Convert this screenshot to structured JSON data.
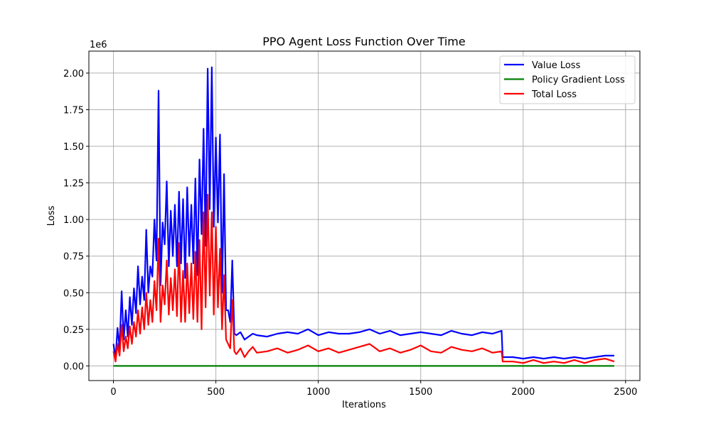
{
  "chart_data": {
    "type": "line",
    "title": "PPO Agent Loss Function Over Time",
    "xlabel": "Iterations",
    "ylabel": "Loss",
    "y_offset_text": "1e6",
    "xlim": [
      -120,
      2570
    ],
    "ylim": [
      -0.1,
      2.15
    ],
    "x_ticks": [
      0,
      500,
      1000,
      1500,
      2000,
      2500
    ],
    "y_ticks": [
      0.0,
      0.25,
      0.5,
      0.75,
      1.0,
      1.25,
      1.5,
      1.75,
      2.0
    ],
    "y_tick_labels": [
      "0.00",
      "0.25",
      "0.50",
      "0.75",
      "1.00",
      "1.25",
      "1.50",
      "1.75",
      "2.00"
    ],
    "grid": true,
    "legend_position": "top-right",
    "colors": {
      "value": "#0000ff",
      "policy": "#008000",
      "total": "#ff0000",
      "grid": "#b0b0b0"
    },
    "series": [
      {
        "name": "Value Loss",
        "color": "#0000ff",
        "x": [
          0,
          10,
          20,
          30,
          40,
          50,
          60,
          70,
          80,
          90,
          100,
          110,
          120,
          130,
          140,
          150,
          160,
          170,
          180,
          190,
          200,
          210,
          220,
          230,
          240,
          250,
          260,
          270,
          280,
          290,
          300,
          310,
          320,
          330,
          340,
          350,
          360,
          370,
          380,
          390,
          400,
          410,
          420,
          430,
          440,
          450,
          460,
          470,
          480,
          490,
          500,
          510,
          520,
          530,
          540,
          550,
          560,
          570,
          580,
          590,
          600,
          620,
          640,
          660,
          680,
          700,
          750,
          800,
          850,
          900,
          950,
          1000,
          1050,
          1100,
          1150,
          1200,
          1250,
          1300,
          1350,
          1400,
          1450,
          1500,
          1550,
          1600,
          1650,
          1700,
          1750,
          1800,
          1850,
          1895,
          1900,
          1950,
          2000,
          2050,
          2100,
          2150,
          2200,
          2250,
          2300,
          2350,
          2400,
          2445
        ],
        "values": [
          0.15,
          0.05,
          0.26,
          0.12,
          0.51,
          0.18,
          0.38,
          0.2,
          0.47,
          0.28,
          0.53,
          0.36,
          0.68,
          0.42,
          0.61,
          0.45,
          0.93,
          0.5,
          0.68,
          0.61,
          1.0,
          0.72,
          1.88,
          0.55,
          0.98,
          0.83,
          1.26,
          0.68,
          1.06,
          0.75,
          1.1,
          0.68,
          1.19,
          0.7,
          1.14,
          0.6,
          1.22,
          0.75,
          1.1,
          0.7,
          1.28,
          0.62,
          1.41,
          0.9,
          1.62,
          0.82,
          2.03,
          1.07,
          2.04,
          0.95,
          1.56,
          0.98,
          1.58,
          0.5,
          1.31,
          0.38,
          0.38,
          0.3,
          0.72,
          0.22,
          0.21,
          0.23,
          0.18,
          0.2,
          0.22,
          0.21,
          0.2,
          0.22,
          0.23,
          0.22,
          0.25,
          0.21,
          0.23,
          0.22,
          0.22,
          0.23,
          0.25,
          0.22,
          0.24,
          0.21,
          0.22,
          0.23,
          0.22,
          0.21,
          0.24,
          0.22,
          0.21,
          0.23,
          0.22,
          0.24,
          0.06,
          0.06,
          0.05,
          0.06,
          0.05,
          0.06,
          0.05,
          0.06,
          0.05,
          0.06,
          0.07,
          0.07
        ]
      },
      {
        "name": "Policy Gradient Loss",
        "color": "#008000",
        "x": [
          0,
          500,
          1000,
          1500,
          2000,
          2445
        ],
        "values": [
          0.0,
          0.0,
          0.0,
          0.0,
          0.0,
          0.0
        ]
      },
      {
        "name": "Total Loss",
        "color": "#ff0000",
        "x": [
          0,
          10,
          20,
          30,
          40,
          50,
          60,
          70,
          80,
          90,
          100,
          110,
          120,
          130,
          140,
          150,
          160,
          170,
          180,
          190,
          200,
          210,
          220,
          230,
          240,
          250,
          260,
          270,
          280,
          290,
          300,
          310,
          320,
          330,
          340,
          350,
          360,
          370,
          380,
          390,
          400,
          410,
          420,
          430,
          440,
          450,
          460,
          470,
          480,
          490,
          500,
          510,
          520,
          530,
          540,
          550,
          560,
          570,
          580,
          590,
          600,
          620,
          640,
          660,
          680,
          700,
          750,
          800,
          850,
          900,
          950,
          1000,
          1050,
          1100,
          1150,
          1200,
          1250,
          1300,
          1350,
          1400,
          1450,
          1500,
          1550,
          1600,
          1650,
          1700,
          1750,
          1800,
          1850,
          1895,
          1900,
          1950,
          2000,
          2050,
          2100,
          2150,
          2200,
          2250,
          2300,
          2350,
          2400,
          2445
        ],
        "values": [
          0.1,
          0.03,
          0.15,
          0.07,
          0.28,
          0.1,
          0.2,
          0.12,
          0.27,
          0.15,
          0.3,
          0.2,
          0.38,
          0.22,
          0.4,
          0.25,
          0.5,
          0.28,
          0.45,
          0.3,
          0.58,
          0.38,
          0.87,
          0.3,
          0.55,
          0.42,
          0.72,
          0.35,
          0.6,
          0.38,
          0.66,
          0.34,
          0.84,
          0.3,
          0.65,
          0.3,
          0.7,
          0.36,
          0.7,
          0.32,
          0.78,
          0.3,
          0.86,
          0.25,
          1.05,
          0.4,
          1.17,
          0.48,
          1.05,
          0.35,
          0.95,
          0.4,
          0.8,
          0.25,
          0.62,
          0.18,
          0.15,
          0.12,
          0.45,
          0.1,
          0.08,
          0.12,
          0.06,
          0.1,
          0.13,
          0.09,
          0.1,
          0.12,
          0.09,
          0.11,
          0.14,
          0.1,
          0.12,
          0.09,
          0.11,
          0.13,
          0.15,
          0.1,
          0.12,
          0.09,
          0.11,
          0.14,
          0.1,
          0.09,
          0.13,
          0.11,
          0.1,
          0.12,
          0.09,
          0.1,
          0.03,
          0.03,
          0.02,
          0.04,
          0.02,
          0.03,
          0.02,
          0.04,
          0.02,
          0.04,
          0.05,
          0.03
        ]
      }
    ]
  }
}
